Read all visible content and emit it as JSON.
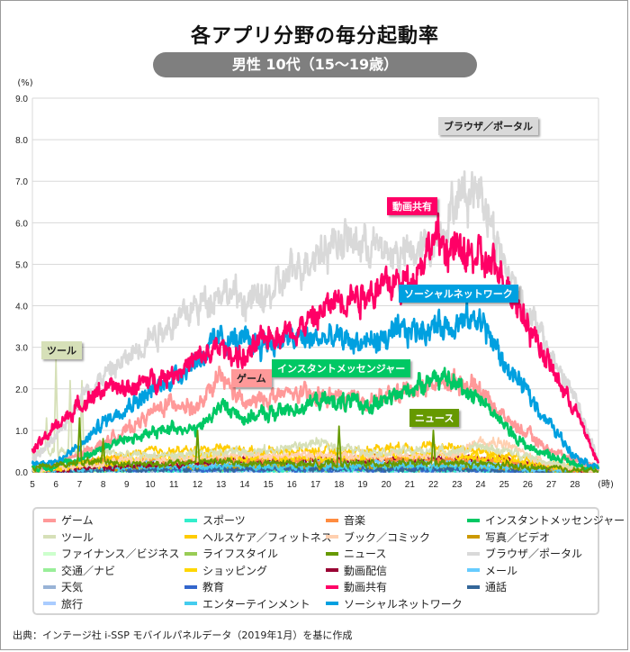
{
  "title": "各アプリ分野の毎分起動率",
  "subtitle": "男性 10代（15～19歳）",
  "source": "出典：インテージ社 i-SSP モバイルパネルデータ（2019年1月）を基に作成",
  "chart_data": {
    "type": "line",
    "ylabel": "(%)",
    "xlabel": "(時)",
    "ylim": [
      0,
      9
    ],
    "xlim": [
      5,
      29
    ],
    "y_ticks": [
      "0.0",
      "1.0",
      "2.0",
      "3.0",
      "4.0",
      "5.0",
      "6.0",
      "7.0",
      "8.0",
      "9.0"
    ],
    "x_ticks": [
      "5",
      "6",
      "7",
      "8",
      "9",
      "10",
      "11",
      "12",
      "13",
      "14",
      "15",
      "16",
      "17",
      "18",
      "19",
      "20",
      "21",
      "22",
      "23",
      "24",
      "25",
      "26",
      "27",
      "28"
    ],
    "grid": true,
    "legend_placement": "bottom",
    "x_hours": [
      5,
      6,
      7,
      8,
      9,
      10,
      11,
      12,
      13,
      14,
      15,
      16,
      17,
      18,
      19,
      20,
      21,
      22,
      23,
      24,
      25,
      26,
      27,
      28,
      29
    ],
    "series": [
      {
        "name": "ゲーム",
        "color": "#ff9999",
        "values": [
          0.1,
          0.2,
          0.4,
          0.7,
          1.0,
          1.4,
          1.7,
          1.5,
          2.3,
          1.6,
          1.8,
          1.9,
          1.8,
          1.8,
          1.7,
          1.8,
          2.0,
          2.1,
          2.2,
          2.0,
          1.3,
          0.9,
          0.5,
          0.3,
          0.1
        ],
        "callout": "ゲーム"
      },
      {
        "name": "ツール",
        "color": "#d6e0b8",
        "values": [
          0.4,
          0.5,
          0.5,
          0.5,
          0.4,
          0.4,
          0.4,
          0.4,
          0.5,
          0.5,
          0.5,
          0.6,
          0.7,
          0.6,
          0.5,
          0.5,
          0.5,
          0.5,
          0.5,
          0.6,
          0.5,
          0.4,
          0.2,
          0.1,
          0.05
        ],
        "spikes": [
          [
            5.6,
            1.3
          ],
          [
            6.0,
            2.7
          ],
          [
            6.6,
            2.2
          ],
          [
            7.1,
            2.2
          ]
        ],
        "callout": "ツール"
      },
      {
        "name": "ファイナンス／ビジネス",
        "color": "#ccffcc",
        "values": [
          0.02,
          0.03,
          0.05,
          0.05,
          0.06,
          0.06,
          0.06,
          0.06,
          0.07,
          0.07,
          0.07,
          0.07,
          0.07,
          0.07,
          0.07,
          0.07,
          0.07,
          0.07,
          0.06,
          0.06,
          0.05,
          0.04,
          0.03,
          0.02,
          0.01
        ]
      },
      {
        "name": "交通／ナビ",
        "color": "#99ee99",
        "values": [
          0.03,
          0.05,
          0.1,
          0.1,
          0.08,
          0.07,
          0.07,
          0.08,
          0.08,
          0.08,
          0.08,
          0.09,
          0.1,
          0.1,
          0.09,
          0.08,
          0.08,
          0.07,
          0.06,
          0.05,
          0.04,
          0.03,
          0.02,
          0.02,
          0.01
        ]
      },
      {
        "name": "天気",
        "color": "#99b3d6",
        "values": [
          0.05,
          0.08,
          0.1,
          0.08,
          0.05,
          0.04,
          0.04,
          0.04,
          0.04,
          0.04,
          0.04,
          0.04,
          0.04,
          0.04,
          0.04,
          0.04,
          0.04,
          0.04,
          0.04,
          0.04,
          0.03,
          0.02,
          0.02,
          0.01,
          0.01
        ]
      },
      {
        "name": "旅行",
        "color": "#aaccff",
        "values": [
          0.01,
          0.01,
          0.02,
          0.02,
          0.03,
          0.03,
          0.03,
          0.03,
          0.03,
          0.03,
          0.03,
          0.03,
          0.03,
          0.03,
          0.03,
          0.03,
          0.03,
          0.03,
          0.03,
          0.03,
          0.02,
          0.02,
          0.01,
          0.01,
          0.01
        ]
      },
      {
        "name": "スポーツ",
        "color": "#33eecc",
        "values": [
          0.01,
          0.02,
          0.03,
          0.04,
          0.04,
          0.05,
          0.05,
          0.05,
          0.05,
          0.05,
          0.05,
          0.05,
          0.05,
          0.05,
          0.05,
          0.05,
          0.05,
          0.05,
          0.05,
          0.05,
          0.04,
          0.03,
          0.02,
          0.01,
          0.01
        ]
      },
      {
        "name": "ヘルスケア／フィットネス",
        "color": "#ffcc00",
        "values": [
          0.05,
          0.1,
          0.2,
          0.3,
          0.4,
          0.5,
          0.5,
          0.5,
          0.6,
          0.5,
          0.5,
          0.5,
          0.5,
          0.5,
          0.5,
          0.6,
          0.6,
          0.6,
          0.6,
          0.5,
          0.4,
          0.3,
          0.2,
          0.1,
          0.05
        ]
      },
      {
        "name": "ライフスタイル",
        "color": "#99cc55",
        "values": [
          0.02,
          0.04,
          0.08,
          0.1,
          0.1,
          0.1,
          0.1,
          0.1,
          0.1,
          0.1,
          0.1,
          0.1,
          0.1,
          0.1,
          0.1,
          0.1,
          0.1,
          0.1,
          0.1,
          0.1,
          0.08,
          0.06,
          0.04,
          0.02,
          0.01
        ]
      },
      {
        "name": "ショッピング",
        "color": "#ffd700",
        "values": [
          0.03,
          0.07,
          0.14,
          0.2,
          0.28,
          0.35,
          0.35,
          0.35,
          0.4,
          0.35,
          0.35,
          0.35,
          0.35,
          0.35,
          0.35,
          0.4,
          0.4,
          0.4,
          0.4,
          0.35,
          0.3,
          0.2,
          0.14,
          0.07,
          0.03
        ]
      },
      {
        "name": "教育",
        "color": "#3366cc",
        "values": [
          0.02,
          0.03,
          0.05,
          0.06,
          0.06,
          0.06,
          0.06,
          0.06,
          0.06,
          0.06,
          0.06,
          0.06,
          0.06,
          0.06,
          0.06,
          0.06,
          0.06,
          0.06,
          0.06,
          0.05,
          0.04,
          0.03,
          0.02,
          0.02,
          0.01
        ]
      },
      {
        "name": "エンターテインメント",
        "color": "#44ccee",
        "values": [
          0.03,
          0.05,
          0.08,
          0.1,
          0.12,
          0.12,
          0.12,
          0.12,
          0.13,
          0.13,
          0.13,
          0.13,
          0.13,
          0.13,
          0.13,
          0.13,
          0.13,
          0.13,
          0.13,
          0.12,
          0.1,
          0.08,
          0.05,
          0.03,
          0.01
        ]
      },
      {
        "name": "音楽",
        "color": "#ff8c40",
        "values": [
          0.05,
          0.1,
          0.2,
          0.3,
          0.3,
          0.3,
          0.3,
          0.3,
          0.3,
          0.3,
          0.3,
          0.3,
          0.3,
          0.3,
          0.3,
          0.3,
          0.3,
          0.3,
          0.3,
          0.3,
          0.25,
          0.2,
          0.12,
          0.06,
          0.02
        ]
      },
      {
        "name": "ブック／コミック",
        "color": "#ffd0b0",
        "values": [
          0.05,
          0.1,
          0.15,
          0.2,
          0.3,
          0.3,
          0.3,
          0.3,
          0.4,
          0.4,
          0.4,
          0.4,
          0.4,
          0.4,
          0.4,
          0.4,
          0.4,
          0.4,
          0.4,
          0.8,
          0.7,
          0.4,
          0.2,
          0.1,
          0.05
        ]
      },
      {
        "name": "ニュース",
        "color": "#669900",
        "values": [
          0.1,
          0.15,
          0.25,
          0.25,
          0.2,
          0.2,
          0.2,
          0.25,
          0.25,
          0.2,
          0.2,
          0.2,
          0.2,
          0.2,
          0.2,
          0.2,
          0.2,
          0.2,
          0.2,
          0.2,
          0.15,
          0.1,
          0.08,
          0.05,
          0.02
        ],
        "spikes": [
          [
            7.0,
            1.3
          ],
          [
            8.0,
            0.8
          ],
          [
            12.0,
            1.0
          ],
          [
            18.0,
            1.1
          ],
          [
            22.0,
            1.0
          ]
        ],
        "callout": "ニュース"
      },
      {
        "name": "動画配信",
        "color": "#990033",
        "values": [
          0.05,
          0.05,
          0.1,
          0.1,
          0.15,
          0.2,
          0.2,
          0.2,
          0.3,
          0.3,
          0.3,
          0.3,
          0.3,
          0.35,
          0.3,
          0.3,
          0.3,
          0.35,
          0.35,
          0.3,
          0.3,
          0.2,
          0.1,
          0.05,
          0.02
        ]
      },
      {
        "name": "動画共有",
        "color": "#ff0066",
        "values": [
          0.5,
          1.1,
          1.6,
          2.0,
          2.0,
          2.2,
          2.4,
          2.7,
          3.0,
          2.7,
          3.3,
          3.4,
          3.7,
          4.2,
          4.3,
          4.5,
          4.6,
          5.6,
          5.3,
          5.1,
          4.7,
          3.6,
          2.5,
          1.5,
          0.2
        ],
        "callout": "動画共有"
      },
      {
        "name": "ソーシャルネットワーク",
        "color": "#00a0e0",
        "values": [
          0.2,
          0.25,
          0.6,
          1.2,
          1.6,
          1.9,
          2.3,
          2.7,
          3.2,
          3.1,
          3.1,
          3.2,
          3.2,
          3.2,
          3.1,
          3.2,
          3.4,
          3.5,
          3.6,
          3.7,
          2.6,
          1.9,
          1.1,
          0.4,
          0.1
        ],
        "callout": "ソーシャルネットワーク"
      },
      {
        "name": "インスタントメッセンジャー",
        "color": "#00c864",
        "values": [
          0.1,
          0.15,
          0.3,
          0.6,
          0.8,
          0.9,
          1.1,
          1.0,
          1.6,
          1.3,
          1.4,
          1.5,
          1.7,
          1.7,
          1.6,
          1.7,
          2.0,
          2.3,
          2.1,
          1.8,
          1.1,
          0.6,
          0.4,
          0.2,
          0.05
        ],
        "callout": "インスタントメッセンジャー"
      },
      {
        "name": "写真／ビデオ",
        "color": "#cc9900",
        "values": [
          0.05,
          0.08,
          0.12,
          0.15,
          0.15,
          0.15,
          0.15,
          0.15,
          0.18,
          0.18,
          0.18,
          0.18,
          0.18,
          0.18,
          0.18,
          0.18,
          0.18,
          0.18,
          0.18,
          0.15,
          0.12,
          0.08,
          0.05,
          0.03,
          0.01
        ]
      },
      {
        "name": "ブラウザ／ポータル",
        "color": "#d9d9d9",
        "values": [
          0.3,
          0.8,
          1.8,
          2.3,
          2.7,
          3.3,
          3.6,
          4.0,
          4.4,
          4.1,
          4.2,
          4.8,
          5.3,
          5.6,
          5.5,
          5.3,
          5.2,
          5.5,
          6.6,
          6.9,
          5.0,
          3.9,
          2.8,
          1.8,
          0.2
        ],
        "callout": "ブラウザ／ポータル"
      },
      {
        "name": "メール",
        "color": "#66ccff",
        "values": [
          0.05,
          0.1,
          0.2,
          0.25,
          0.25,
          0.25,
          0.25,
          0.25,
          0.25,
          0.25,
          0.25,
          0.25,
          0.25,
          0.25,
          0.25,
          0.25,
          0.25,
          0.25,
          0.25,
          0.2,
          0.15,
          0.1,
          0.06,
          0.03,
          0.01
        ]
      },
      {
        "name": "通話",
        "color": "#336699",
        "values": [
          0.02,
          0.03,
          0.05,
          0.06,
          0.06,
          0.07,
          0.07,
          0.07,
          0.07,
          0.07,
          0.07,
          0.07,
          0.07,
          0.08,
          0.08,
          0.08,
          0.08,
          0.08,
          0.07,
          0.06,
          0.05,
          0.04,
          0.03,
          0.02,
          0.01
        ]
      }
    ]
  }
}
